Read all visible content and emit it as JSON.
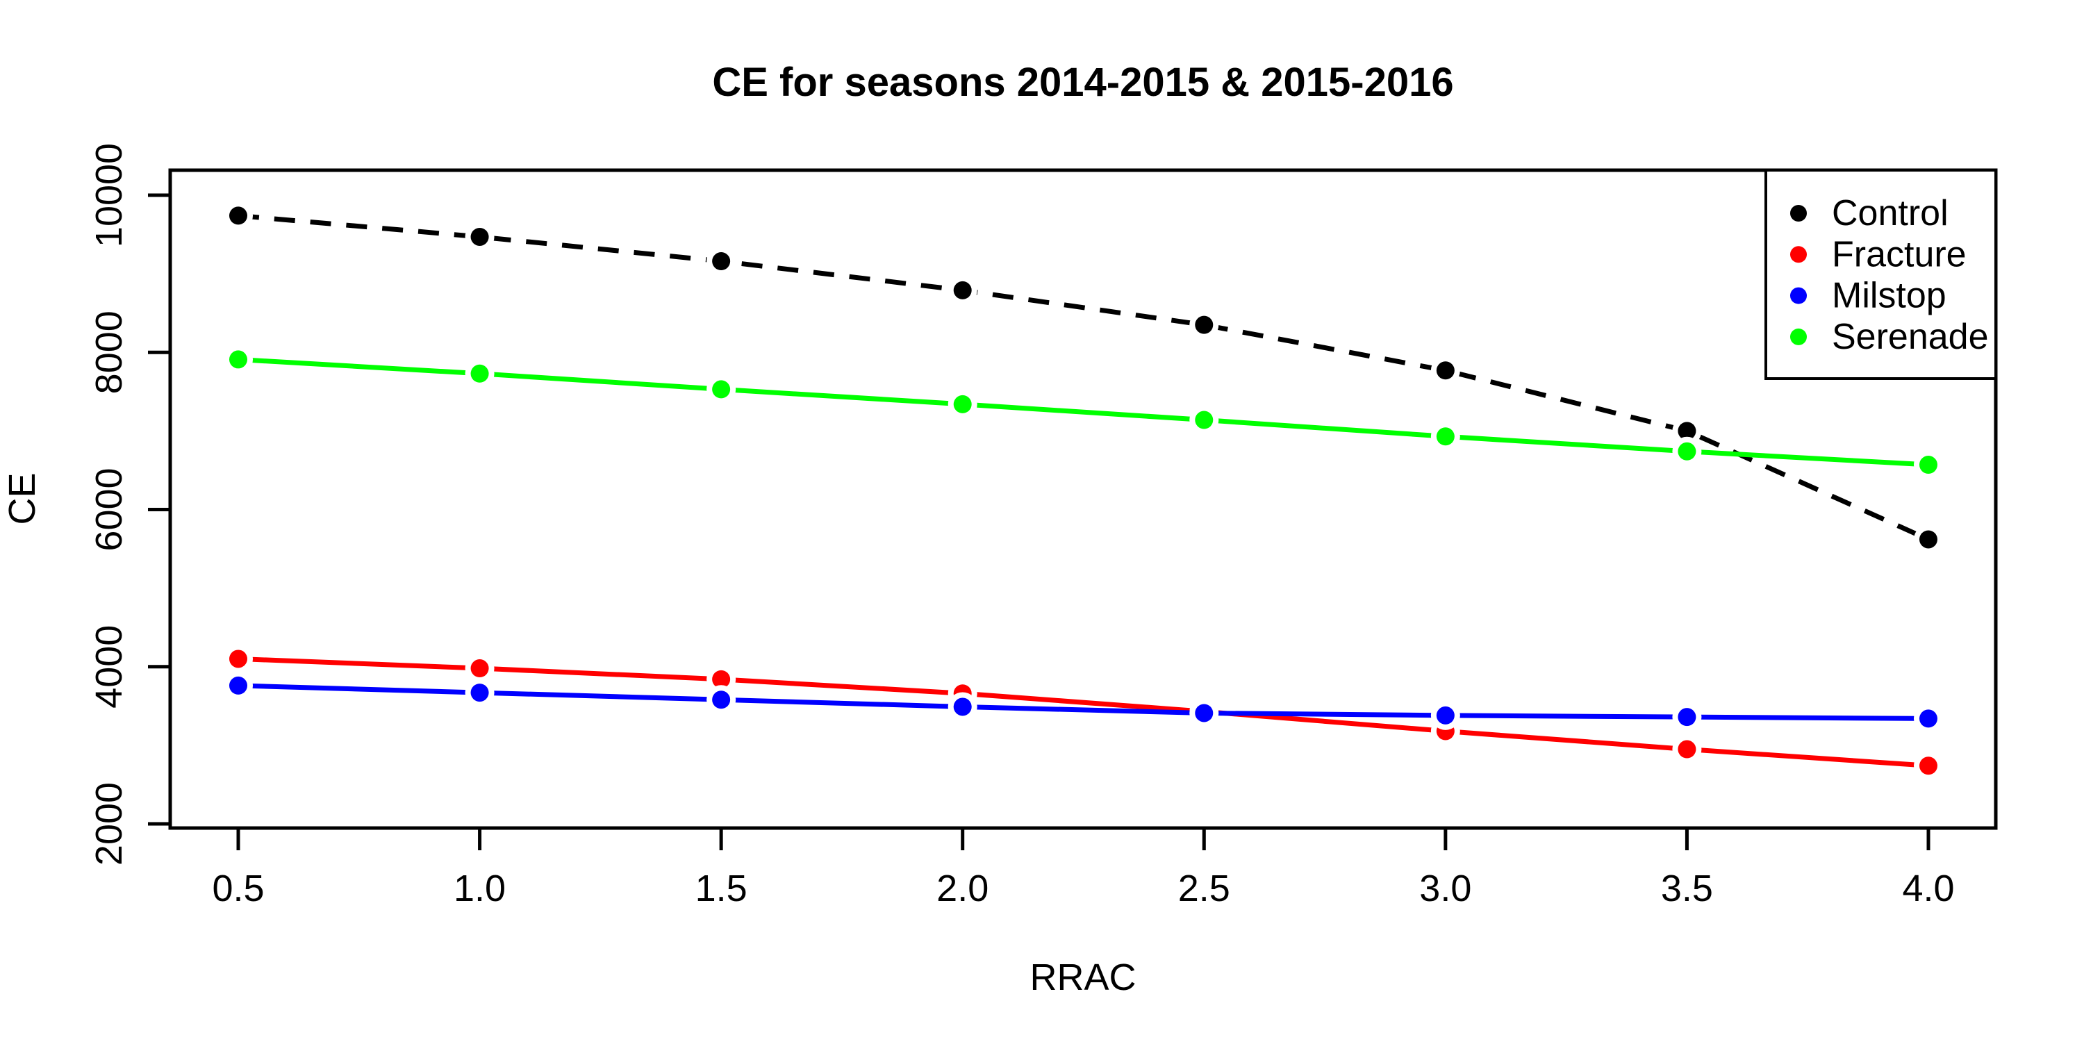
{
  "figure": {
    "title": "CE for seasons 2014-2015 & 2015-2016",
    "xlabel": "RRAC",
    "ylabel": "CE",
    "background": "#ffffff",
    "foreground": "#000000"
  },
  "chart_data": {
    "type": "line",
    "title": "CE for seasons 2014-2015 & 2015-2016",
    "xlabel": "RRAC",
    "ylabel": "CE",
    "x": [
      0.5,
      1.0,
      1.5,
      2.0,
      2.5,
      3.0,
      3.5,
      4.0
    ],
    "series": [
      {
        "name": "Control",
        "color": "#000000",
        "line_style": "dashed",
        "marker": "filled-circle",
        "values": [
          9740,
          9470,
          9160,
          8790,
          8350,
          7770,
          7000,
          5620
        ]
      },
      {
        "name": "Fracture",
        "color": "#FF0000",
        "line_style": "solid",
        "marker": "filled-circle",
        "values": [
          4100,
          3980,
          3840,
          3660,
          3430,
          3180,
          2950,
          2740
        ]
      },
      {
        "name": "Milstop",
        "color": "#0000FF",
        "line_style": "solid",
        "marker": "filled-circle",
        "values": [
          3760,
          3670,
          3580,
          3490,
          3410,
          3380,
          3360,
          3340
        ]
      },
      {
        "name": "Serenade",
        "color": "#00FF00",
        "line_style": "solid",
        "marker": "filled-circle",
        "values": [
          7910,
          7730,
          7530,
          7340,
          7140,
          6930,
          6740,
          6570
        ]
      }
    ],
    "x_tick_labels": [
      "0.5",
      "1.0",
      "1.5",
      "2.0",
      "2.5",
      "3.0",
      "3.5",
      "4.0"
    ],
    "x_tick_values": [
      0.5,
      1.0,
      1.5,
      2.0,
      2.5,
      3.0,
      3.5,
      4.0
    ],
    "y_tick_labels": [
      "2000",
      "4000",
      "6000",
      "8000",
      "10000"
    ],
    "y_tick_values": [
      2000,
      4000,
      6000,
      8000,
      10000
    ],
    "xlim": [
      0.36,
      4.14
    ],
    "ylim": [
      1950,
      10320
    ],
    "grid": false,
    "legend_position": "topright",
    "legend_entries": [
      "Control",
      "Fracture",
      "Milstop",
      "Serenade"
    ]
  }
}
